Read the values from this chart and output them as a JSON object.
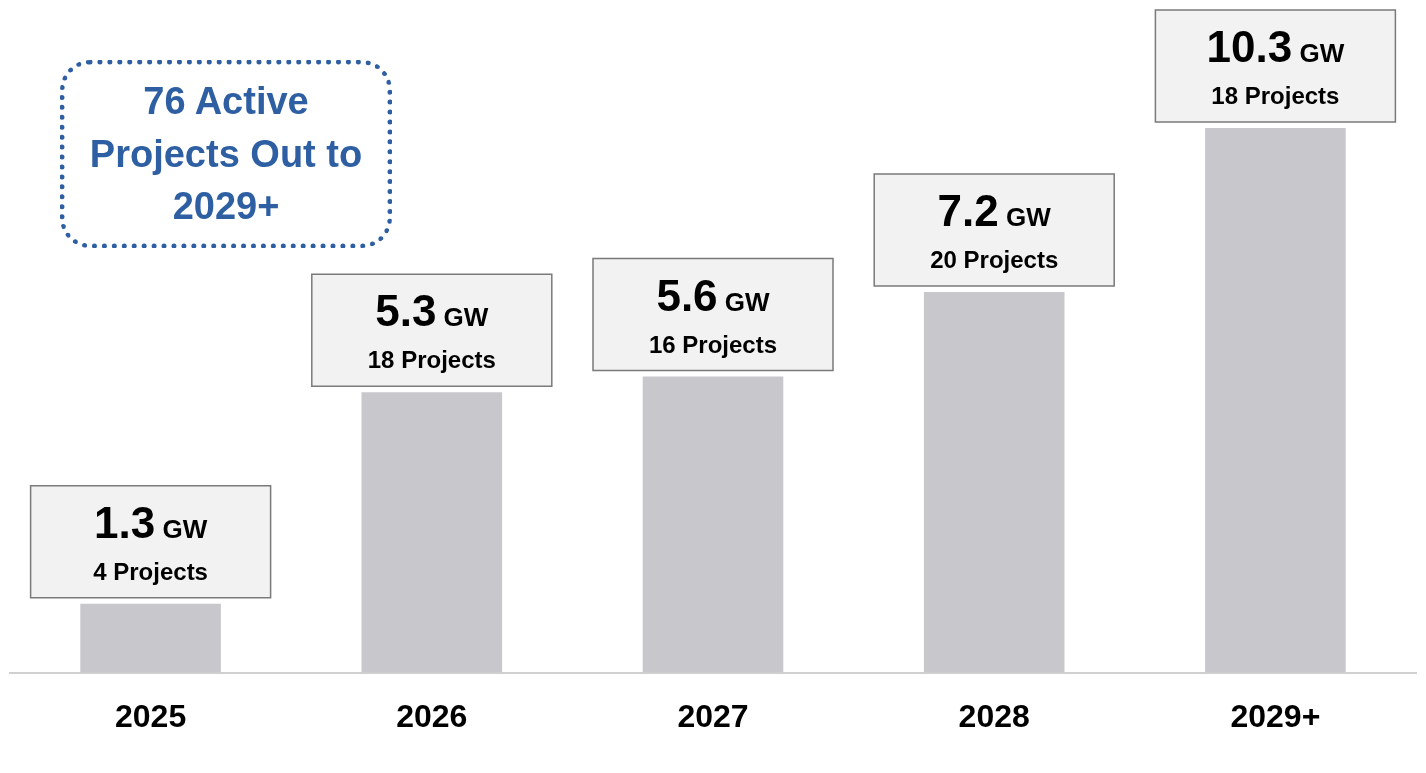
{
  "chart_data": {
    "type": "bar",
    "categories": [
      "2025",
      "2026",
      "2027",
      "2028",
      "2029+"
    ],
    "values": [
      1.3,
      5.3,
      5.6,
      7.2,
      10.3
    ],
    "color": "#c8c8cc",
    "data_labels": true,
    "value_labels": [
      "1.3 GW",
      "5.3 GW",
      "5.6 GW",
      "7.2 GW",
      "10.3 GW"
    ],
    "annotations": [
      {
        "text": "4 Projects",
        "x": "2025",
        "y": 1.3
      },
      {
        "text": "18 Projects",
        "x": "2026",
        "y": 5.3
      },
      {
        "text": "16 Projects",
        "x": "2027",
        "y": 5.6
      },
      {
        "text": "20 Projects",
        "x": "2028",
        "y": 7.2
      },
      {
        "text": "18 Projects",
        "x": "2029+",
        "y": 10.3
      },
      "76 Active Projects Out to 2029+"
    ],
    "legend": false,
    "grid": false
  }
}
